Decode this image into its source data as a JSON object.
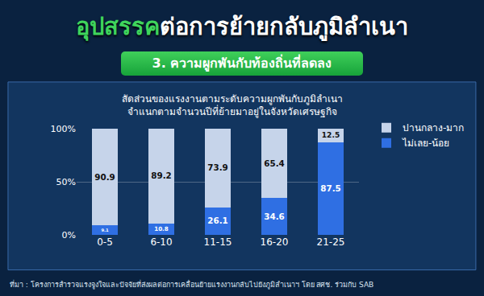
{
  "header": {
    "title": [
      {
        "text": "อุปสรรค",
        "color": "#3fd45c"
      },
      {
        "text": "ต่อการย้ายกลับภูมิลำเนา",
        "color": "#ffffff"
      }
    ],
    "subtitle": "3. ความผูกพันกับท้องถิ่นที่ลดลง"
  },
  "chart_data": {
    "type": "bar",
    "stacked": true,
    "data_labels": true,
    "grid": true,
    "legend": "top right",
    "title": [
      "สัดส่วนของแรงงานตามระดับความผูกพันกับภูมิลำเนา",
      "จำแนกตามจำนวนปีที่ย้ายมาอยู่ในจังหวัดเศรษฐกิจ"
    ],
    "categories": [
      "0-5",
      "6-10",
      "11-15",
      "16-20",
      "21-25"
    ],
    "series": [
      {
        "name": "ไม่เลย-น้อย",
        "color": "#2f6fe3",
        "values": [
          9.1,
          10.8,
          26.1,
          34.6,
          87.5
        ]
      },
      {
        "name": "ปานกลาง-มาก",
        "color": "#c6d4ea",
        "values": [
          90.9,
          89.2,
          73.9,
          65.4,
          12.5
        ]
      }
    ],
    "ylim": [
      0,
      100
    ],
    "yticks": [
      {
        "value": 0,
        "label": "0%"
      },
      {
        "value": 50,
        "label": "50%"
      },
      {
        "value": 100,
        "label": "100%"
      }
    ]
  },
  "source": "ที่มา : โครงการสำรวจแรงจูงใจและปัจจัยที่ส่งผลต่อการเคลื่อนย้ายแรงงานกลับไปยังภูมิลำเนาฯ โดย สศช. ร่วมกับ SAB"
}
